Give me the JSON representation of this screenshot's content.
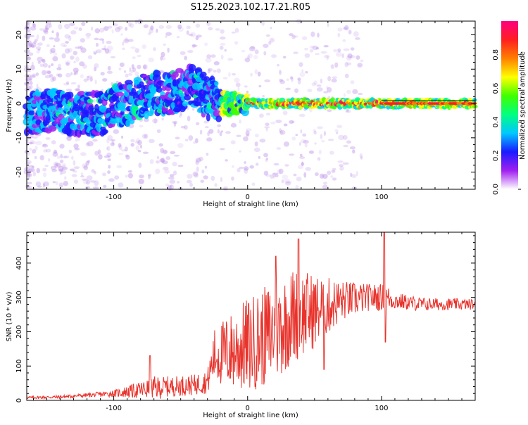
{
  "figure": {
    "title": "S125.2023.102.17.21.R05"
  },
  "chart_data": [
    {
      "type": "heatmap",
      "xlabel": "Height of straight line (km)",
      "ylabel": "Frequency (Hz)",
      "xlim": [
        -165,
        170
      ],
      "ylim": [
        -25,
        24
      ],
      "x_ticks": [
        -100,
        0,
        100
      ],
      "x_tick_labels": [
        "-100",
        "0",
        "100"
      ],
      "y_ticks": [
        -20,
        -10,
        0,
        10,
        20
      ],
      "y_tick_labels": [
        "-20",
        "-10",
        "0",
        "10",
        "20"
      ],
      "ridge_x": [
        -165,
        -150,
        -140,
        -130,
        -120,
        -110,
        -100,
        -90,
        -80,
        -70,
        -60,
        -50,
        -40,
        -35,
        -30,
        -25,
        -20,
        -10,
        0,
        20,
        40,
        60,
        80,
        92,
        100,
        120,
        140,
        170
      ],
      "ridge_y": [
        -3,
        -2,
        -2,
        -3,
        -3,
        -3,
        -1,
        0,
        2,
        3,
        3,
        4,
        5,
        3,
        2,
        1,
        0,
        0,
        0,
        0,
        0,
        0,
        0,
        0,
        0,
        0,
        0,
        0
      ],
      "colorbar": {
        "label": "Normalized spectral amplitude",
        "ticks": [
          0.0,
          0.2,
          0.4,
          0.6,
          0.8
        ],
        "tick_labels": [
          "0.0",
          "0.2",
          "0.4",
          "0.6",
          "0.8"
        ],
        "range": [
          0,
          1
        ],
        "colors": [
          "#ffffff",
          "#a020f0",
          "#1a1aff",
          "#00c8ff",
          "#00ff80",
          "#40ff00",
          "#ffff00",
          "#ff8000",
          "#ff2020",
          "#ff0080"
        ]
      }
    },
    {
      "type": "line",
      "xlabel": "Height of straight line (km)",
      "ylabel": "SNR (10 * v/v)",
      "xlim": [
        -165,
        170
      ],
      "ylim": [
        0,
        490
      ],
      "x_ticks": [
        -100,
        0,
        100
      ],
      "x_tick_labels": [
        "-100",
        "0",
        "100"
      ],
      "y_ticks": [
        0,
        100,
        200,
        300,
        400
      ],
      "y_tick_labels": [
        "0",
        "100",
        "200",
        "300",
        "400"
      ],
      "color": "#e8332c",
      "envelope_x": [
        -165,
        -140,
        -120,
        -100,
        -80,
        -70,
        -60,
        -40,
        -30,
        -25,
        -15,
        0,
        20,
        35,
        50,
        70,
        90,
        103,
        110,
        130,
        170
      ],
      "envelope_base": [
        8,
        10,
        15,
        20,
        30,
        35,
        40,
        45,
        55,
        130,
        140,
        160,
        200,
        250,
        260,
        290,
        300,
        300,
        290,
        280,
        280
      ],
      "envelope_amp": [
        4,
        5,
        6,
        10,
        25,
        35,
        30,
        30,
        35,
        80,
        110,
        140,
        150,
        140,
        110,
        60,
        40,
        40,
        25,
        20,
        15
      ],
      "spikes": [
        {
          "x": 38,
          "y": 470
        },
        {
          "x": 102,
          "y": 490
        },
        {
          "x": 103,
          "y": 170
        },
        {
          "x": 21,
          "y": 420
        },
        {
          "x": 57,
          "y": 90
        },
        {
          "x": -73,
          "y": 130
        }
      ]
    }
  ]
}
